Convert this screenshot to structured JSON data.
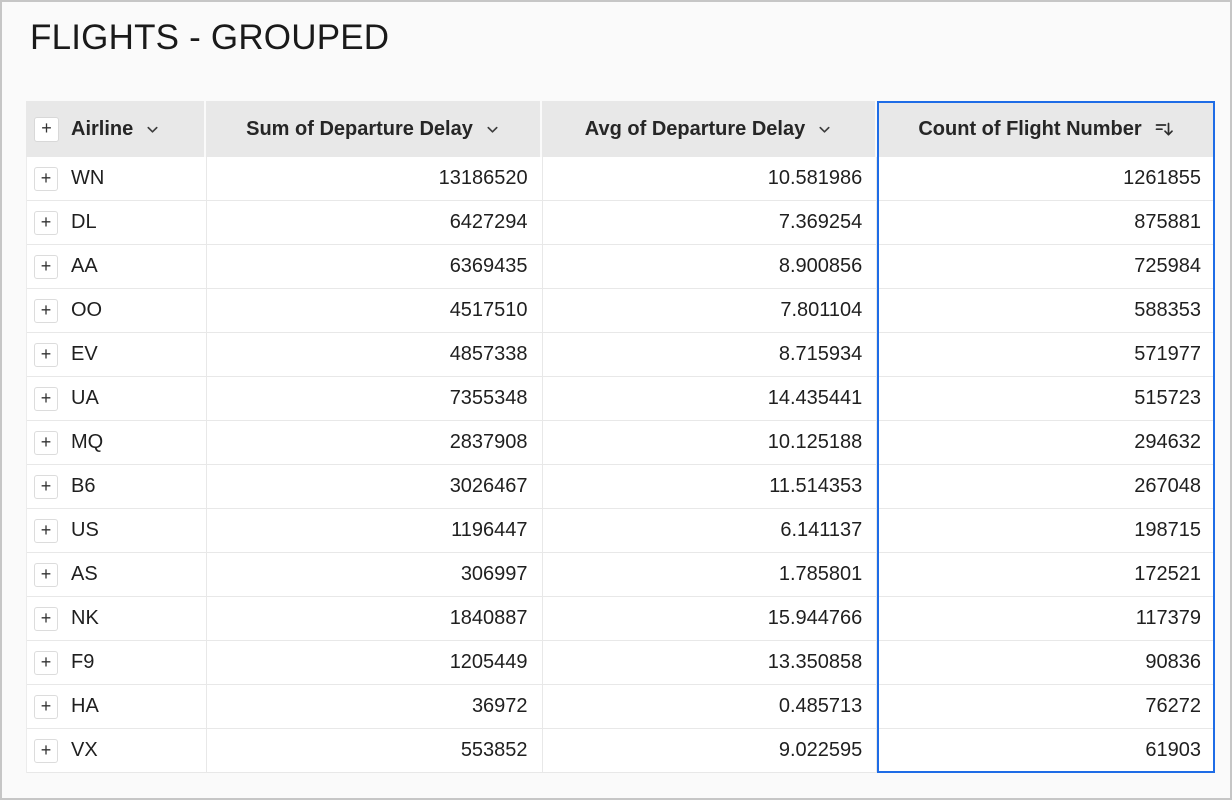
{
  "page": {
    "title": "FLIGHTS - GROUPED"
  },
  "table": {
    "expand_all_label": "+",
    "row_expand_label": "+",
    "columns": [
      {
        "label": "Airline",
        "icon": "chevron-down-icon",
        "align": "left",
        "selected": false
      },
      {
        "label": "Sum of Departure Delay",
        "icon": "chevron-down-icon",
        "align": "right",
        "selected": false
      },
      {
        "label": "Avg of Departure Delay",
        "icon": "chevron-down-icon",
        "align": "right",
        "selected": false
      },
      {
        "label": "Count of Flight Number",
        "icon": "sort-descending-icon",
        "align": "right",
        "selected": true
      }
    ],
    "rows": [
      {
        "airline": "WN",
        "sum": "13186520",
        "avg": "10.581986",
        "count": "1261855"
      },
      {
        "airline": "DL",
        "sum": "6427294",
        "avg": "7.369254",
        "count": "875881"
      },
      {
        "airline": "AA",
        "sum": "6369435",
        "avg": "8.900856",
        "count": "725984"
      },
      {
        "airline": "OO",
        "sum": "4517510",
        "avg": "7.801104",
        "count": "588353"
      },
      {
        "airline": "EV",
        "sum": "4857338",
        "avg": "8.715934",
        "count": "571977"
      },
      {
        "airline": "UA",
        "sum": "7355348",
        "avg": "14.435441",
        "count": "515723"
      },
      {
        "airline": "MQ",
        "sum": "2837908",
        "avg": "10.125188",
        "count": "294632"
      },
      {
        "airline": "B6",
        "sum": "3026467",
        "avg": "11.514353",
        "count": "267048"
      },
      {
        "airline": "US",
        "sum": "1196447",
        "avg": "6.141137",
        "count": "198715"
      },
      {
        "airline": "AS",
        "sum": "306997",
        "avg": "1.785801",
        "count": "172521"
      },
      {
        "airline": "NK",
        "sum": "1840887",
        "avg": "15.944766",
        "count": "117379"
      },
      {
        "airline": "F9",
        "sum": "1205449",
        "avg": "13.350858",
        "count": "90836"
      },
      {
        "airline": "HA",
        "sum": "36972",
        "avg": "0.485713",
        "count": "76272"
      },
      {
        "airline": "VX",
        "sum": "553852",
        "avg": "9.022595",
        "count": "61903"
      }
    ]
  },
  "colors": {
    "selection_border": "#1e6ce6",
    "header_bg": "#e8e8e8",
    "row_border": "#e8e8e8",
    "page_bg": "#fafafa"
  }
}
